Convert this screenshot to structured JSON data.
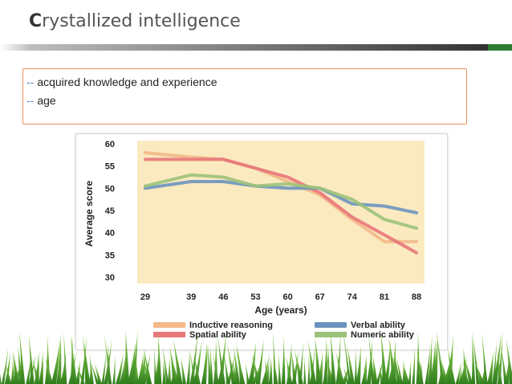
{
  "slide": {
    "title_first": "C",
    "title_rest": "rystallized intelligence",
    "bullets": [
      {
        "dash": "--",
        "text": "acquired knowledge and experience"
      },
      {
        "dash": "--",
        "text": "age"
      }
    ]
  },
  "chart_data": {
    "type": "line",
    "xlabel": "Age (years)",
    "ylabel": "Average score",
    "x": [
      29,
      39,
      46,
      53,
      60,
      67,
      74,
      81,
      88
    ],
    "yticks": [
      30,
      35,
      40,
      45,
      50,
      55,
      60
    ],
    "ylim": [
      30,
      60
    ],
    "grid": false,
    "legend_position": "bottom",
    "plot_background": "#fbeac0",
    "series": [
      {
        "name": "Inductive reasoning",
        "color": "#f2b98a",
        "values": [
          58,
          57,
          56.5,
          54.5,
          51.5,
          48.5,
          43,
          38,
          38
        ]
      },
      {
        "name": "Spatial ability",
        "color": "#e8777a",
        "values": [
          56.5,
          56.5,
          56.5,
          54.5,
          52.5,
          49,
          43.5,
          39.5,
          35.5
        ]
      },
      {
        "name": "Verbal ability",
        "color": "#6b93bf",
        "values": [
          50,
          51.5,
          51.5,
          50.5,
          50,
          50,
          46.5,
          46,
          44.5
        ]
      },
      {
        "name": "Numeric ability",
        "color": "#9cc27a",
        "values": [
          50.5,
          53,
          52.5,
          50.5,
          51,
          50,
          47.5,
          43,
          41
        ]
      }
    ]
  }
}
